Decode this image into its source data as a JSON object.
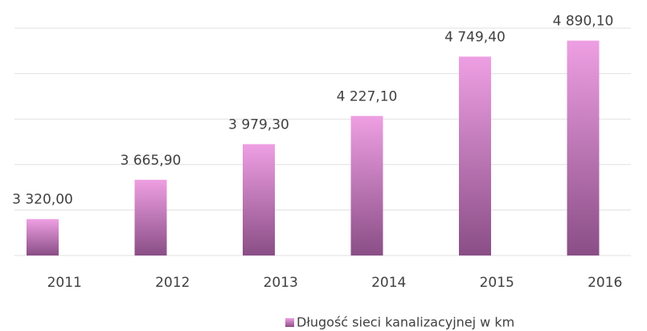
{
  "chart_data": {
    "type": "bar",
    "categories": [
      "2011",
      "2012",
      "2013",
      "2014",
      "2015",
      "2016"
    ],
    "series": [
      {
        "name": "Długość sieci kanalizacyjnej w km",
        "color": "#ee9fe3",
        "values": [
          3320.0,
          3665.9,
          3979.3,
          4227.1,
          4749.4,
          4890.1
        ],
        "value_labels": [
          "3 320,00",
          "3 665,90",
          "3 979,30",
          "4 227,10",
          "4 749,40",
          "4 890,10"
        ]
      }
    ],
    "ylim": [
      3000,
      5000
    ],
    "yticks": [
      3000,
      3400,
      3800,
      4200,
      4600,
      5000
    ],
    "grid": true,
    "legend": "bottom"
  }
}
